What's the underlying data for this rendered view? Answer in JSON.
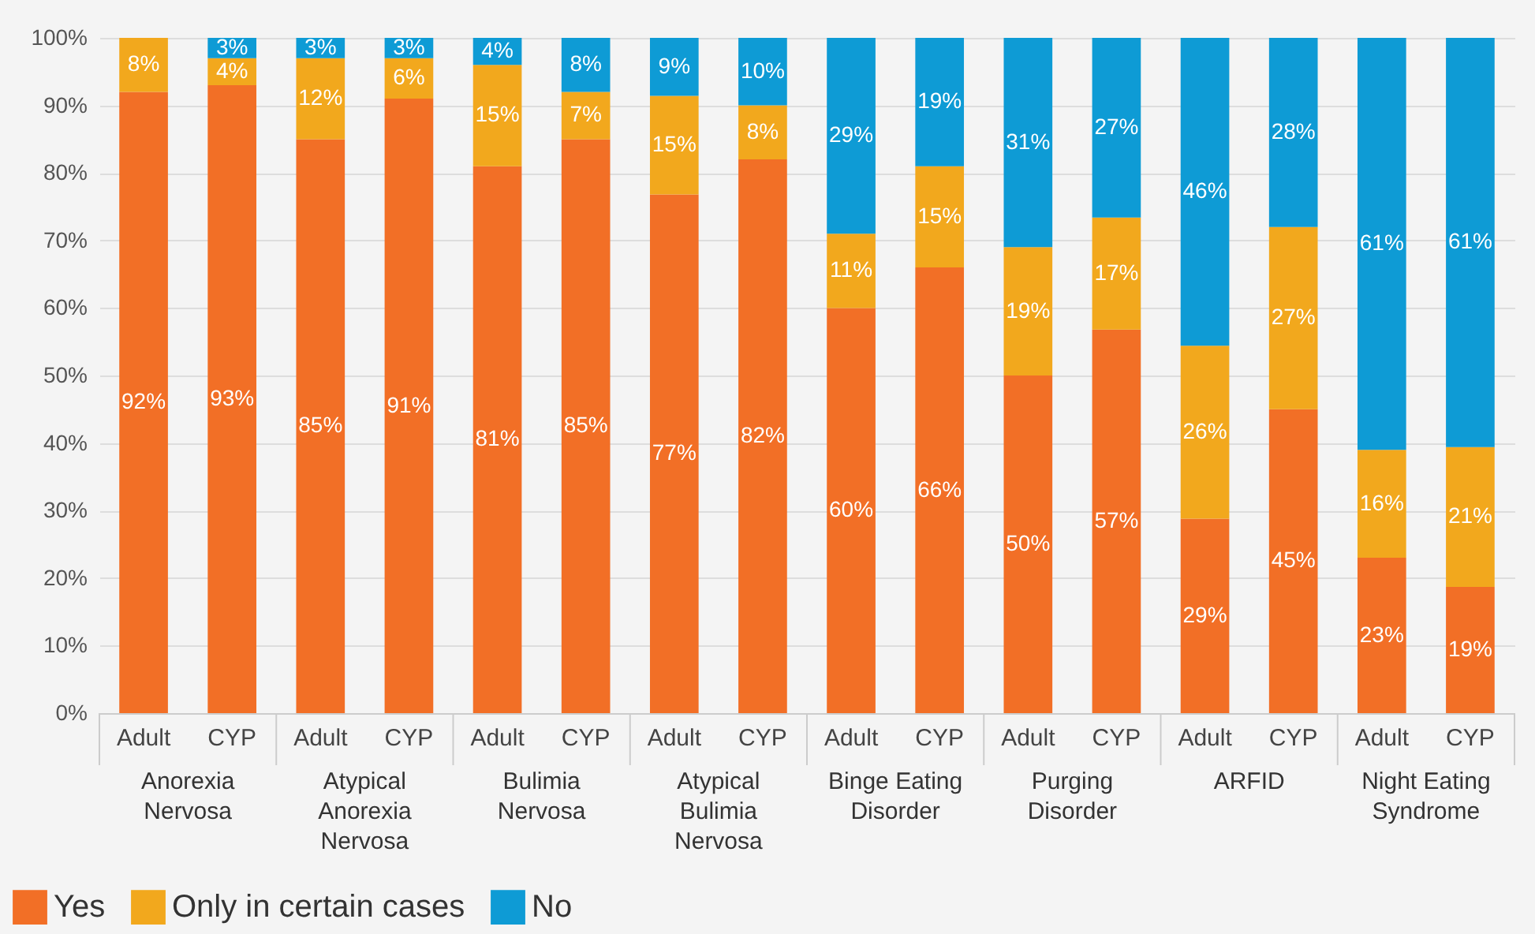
{
  "chart_data": {
    "type": "bar",
    "stacked": true,
    "categories": [
      "Adult",
      "CYP",
      "Adult",
      "CYP",
      "Adult",
      "CYP",
      "Adult",
      "CYP",
      "Adult",
      "CYP",
      "Adult",
      "CYP",
      "Adult",
      "CYP",
      "Adult",
      "CYP"
    ],
    "annotations": [
      "Anorexia Nervosa",
      "Atypical Anorexia Nervosa",
      "Bulimia Nervosa",
      "Atypical Bulimia Nervosa",
      "Binge Eating Disorder",
      "Purging Disorder",
      "ARFID",
      "Night Eating Syndrome"
    ],
    "series": [
      {
        "name": "Yes",
        "color": "#f26f26",
        "values": [
          92,
          93,
          85,
          91,
          81,
          85,
          76.8,
          82,
          60,
          66,
          50,
          56.8,
          28.8,
          45,
          23,
          18.7
        ],
        "value_labels": [
          "92%",
          "93%",
          "85%",
          "91%",
          "81%",
          "85%",
          "77%",
          "82%",
          "60%",
          "66%",
          "50%",
          "57%",
          "29%",
          "45%",
          "23%",
          "19%"
        ]
      },
      {
        "name": "Only in certain cases",
        "color": "#f2a81d",
        "values": [
          8,
          4,
          12,
          6,
          15,
          7,
          14.6,
          8,
          11,
          15,
          19,
          16.6,
          25.6,
          27,
          16,
          20.7
        ],
        "value_labels": [
          "8%",
          "4%",
          "12%",
          "6%",
          "15%",
          "7%",
          "15%",
          "8%",
          "11%",
          "15%",
          "19%",
          "17%",
          "26%",
          "27%",
          "16%",
          "21%"
        ]
      },
      {
        "name": "No",
        "color": "#0e9bd5",
        "values": [
          0,
          3,
          3,
          3,
          4,
          8,
          8.6,
          10,
          29,
          19,
          31,
          26.6,
          45.6,
          28,
          61,
          60.6
        ],
        "value_labels": [
          null,
          "3%",
          "3%",
          "3%",
          "4%",
          "8%",
          "9%",
          "10%",
          "29%",
          "19%",
          "31%",
          "27%",
          "46%",
          "28%",
          "61%",
          "61%"
        ]
      }
    ],
    "ylim": [
      0,
      100
    ],
    "yticks": [
      {
        "value": 0,
        "label": "0%"
      },
      {
        "value": 10,
        "label": "10%"
      },
      {
        "value": 20,
        "label": "20%"
      },
      {
        "value": 30,
        "label": "30%"
      },
      {
        "value": 40,
        "label": "40%"
      },
      {
        "value": 50,
        "label": "50%"
      },
      {
        "value": 60,
        "label": "60%"
      },
      {
        "value": 70,
        "label": "70%"
      },
      {
        "value": 80,
        "label": "80%"
      },
      {
        "value": 90,
        "label": "90%"
      },
      {
        "value": 100,
        "label": "100%"
      }
    ],
    "grid": "y",
    "legend": "bottom left"
  }
}
